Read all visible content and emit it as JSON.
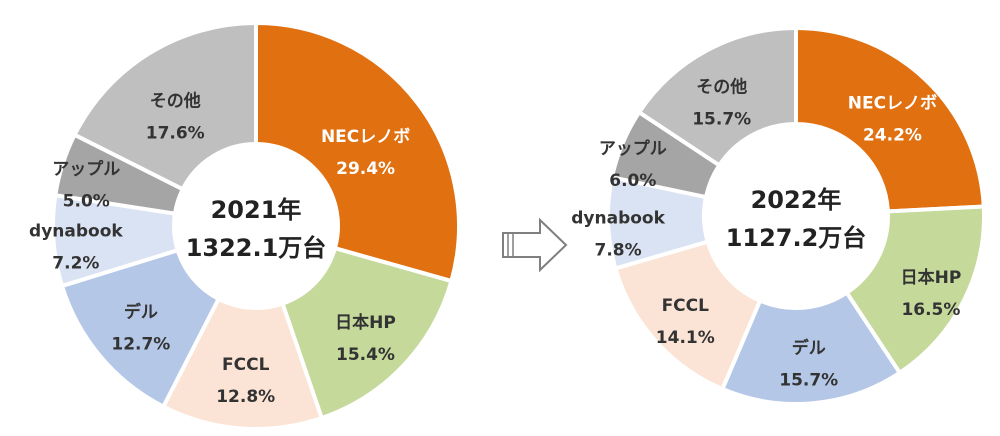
{
  "chart_data": [
    {
      "type": "pie",
      "title": "",
      "center_label": {
        "year": "2021年",
        "total": "1322.1万台"
      },
      "slices": [
        {
          "label": "NECレノボ",
          "value": 29.4,
          "value_text": "29.4%",
          "color": "#E07010"
        },
        {
          "label": "日本HP",
          "value": 15.4,
          "value_text": "15.4%",
          "color": "#C5D99B"
        },
        {
          "label": "FCCL",
          "value": 12.8,
          "value_text": "12.8%",
          "color": "#FBE4D5"
        },
        {
          "label": "デル",
          "value": 12.7,
          "value_text": "12.7%",
          "color": "#B4C7E7"
        },
        {
          "label": "dynabook",
          "value": 7.2,
          "value_text": "7.2%",
          "color": "#DAE3F3"
        },
        {
          "label": "アップル",
          "value": 5.0,
          "value_text": "5.0%",
          "color": "#A5A5A5"
        },
        {
          "label": "その他",
          "value": 17.6,
          "value_text": "17.6%",
          "color": "#BFBFBF"
        }
      ]
    },
    {
      "type": "pie",
      "title": "",
      "center_label": {
        "year": "2022年",
        "total": "1127.2万台"
      },
      "slices": [
        {
          "label": "NECレノボ",
          "value": 24.2,
          "value_text": "24.2%",
          "color": "#E07010"
        },
        {
          "label": "日本HP",
          "value": 16.5,
          "value_text": "16.5%",
          "color": "#C5D99B"
        },
        {
          "label": "デル",
          "value": 15.7,
          "value_text": "15.7%",
          "color": "#B4C7E7"
        },
        {
          "label": "FCCL",
          "value": 14.1,
          "value_text": "14.1%",
          "color": "#FBE4D5"
        },
        {
          "label": "dynabook",
          "value": 7.8,
          "value_text": "7.8%",
          "color": "#DAE3F3"
        },
        {
          "label": "アップル",
          "value": 6.0,
          "value_text": "6.0%",
          "color": "#A5A5A5"
        },
        {
          "label": "その他",
          "value": 15.7,
          "value_text": "15.7%",
          "color": "#BFBFBF"
        }
      ]
    }
  ]
}
